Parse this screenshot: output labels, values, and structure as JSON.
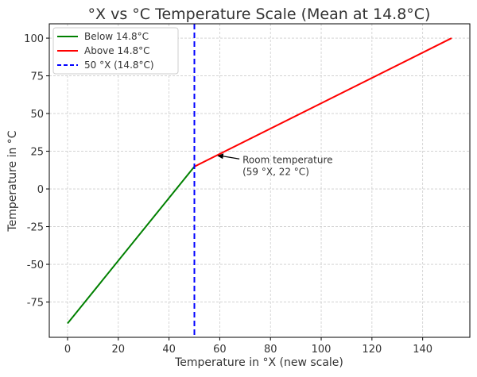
{
  "chart_data": {
    "type": "line",
    "title": "°X vs °C Temperature Scale (Mean at 14.8°C)",
    "xlabel": "Temperature in °X (new scale)",
    "ylabel": "Temperature in °C",
    "xlim": [
      -7.2,
      158.6
    ],
    "ylim": [
      -98.4,
      109.5
    ],
    "xticks": [
      0,
      20,
      40,
      60,
      80,
      100,
      120,
      140
    ],
    "yticks": [
      -75,
      -50,
      -25,
      0,
      25,
      50,
      75,
      100
    ],
    "grid": true,
    "legend_position": "top-left",
    "series": [
      {
        "name": "Below 14.8°C",
        "color": "#008000",
        "style": "solid",
        "x": [
          0,
          50
        ],
        "y": [
          -89.2,
          14.8
        ]
      },
      {
        "name": "Above 14.8°C",
        "color": "#ff0000",
        "style": "solid",
        "x": [
          50,
          151.4
        ],
        "y": [
          14.8,
          100
        ]
      }
    ],
    "vline": {
      "name": "50 °X (14.8°C)",
      "x": 50,
      "color": "#0000ff",
      "style": "dashed"
    },
    "annotation": {
      "lines": [
        "Room temperature",
        "(59 °X, 22 °C)"
      ],
      "x": 59,
      "y": 22,
      "text_x": 69,
      "text_y": 15
    }
  }
}
